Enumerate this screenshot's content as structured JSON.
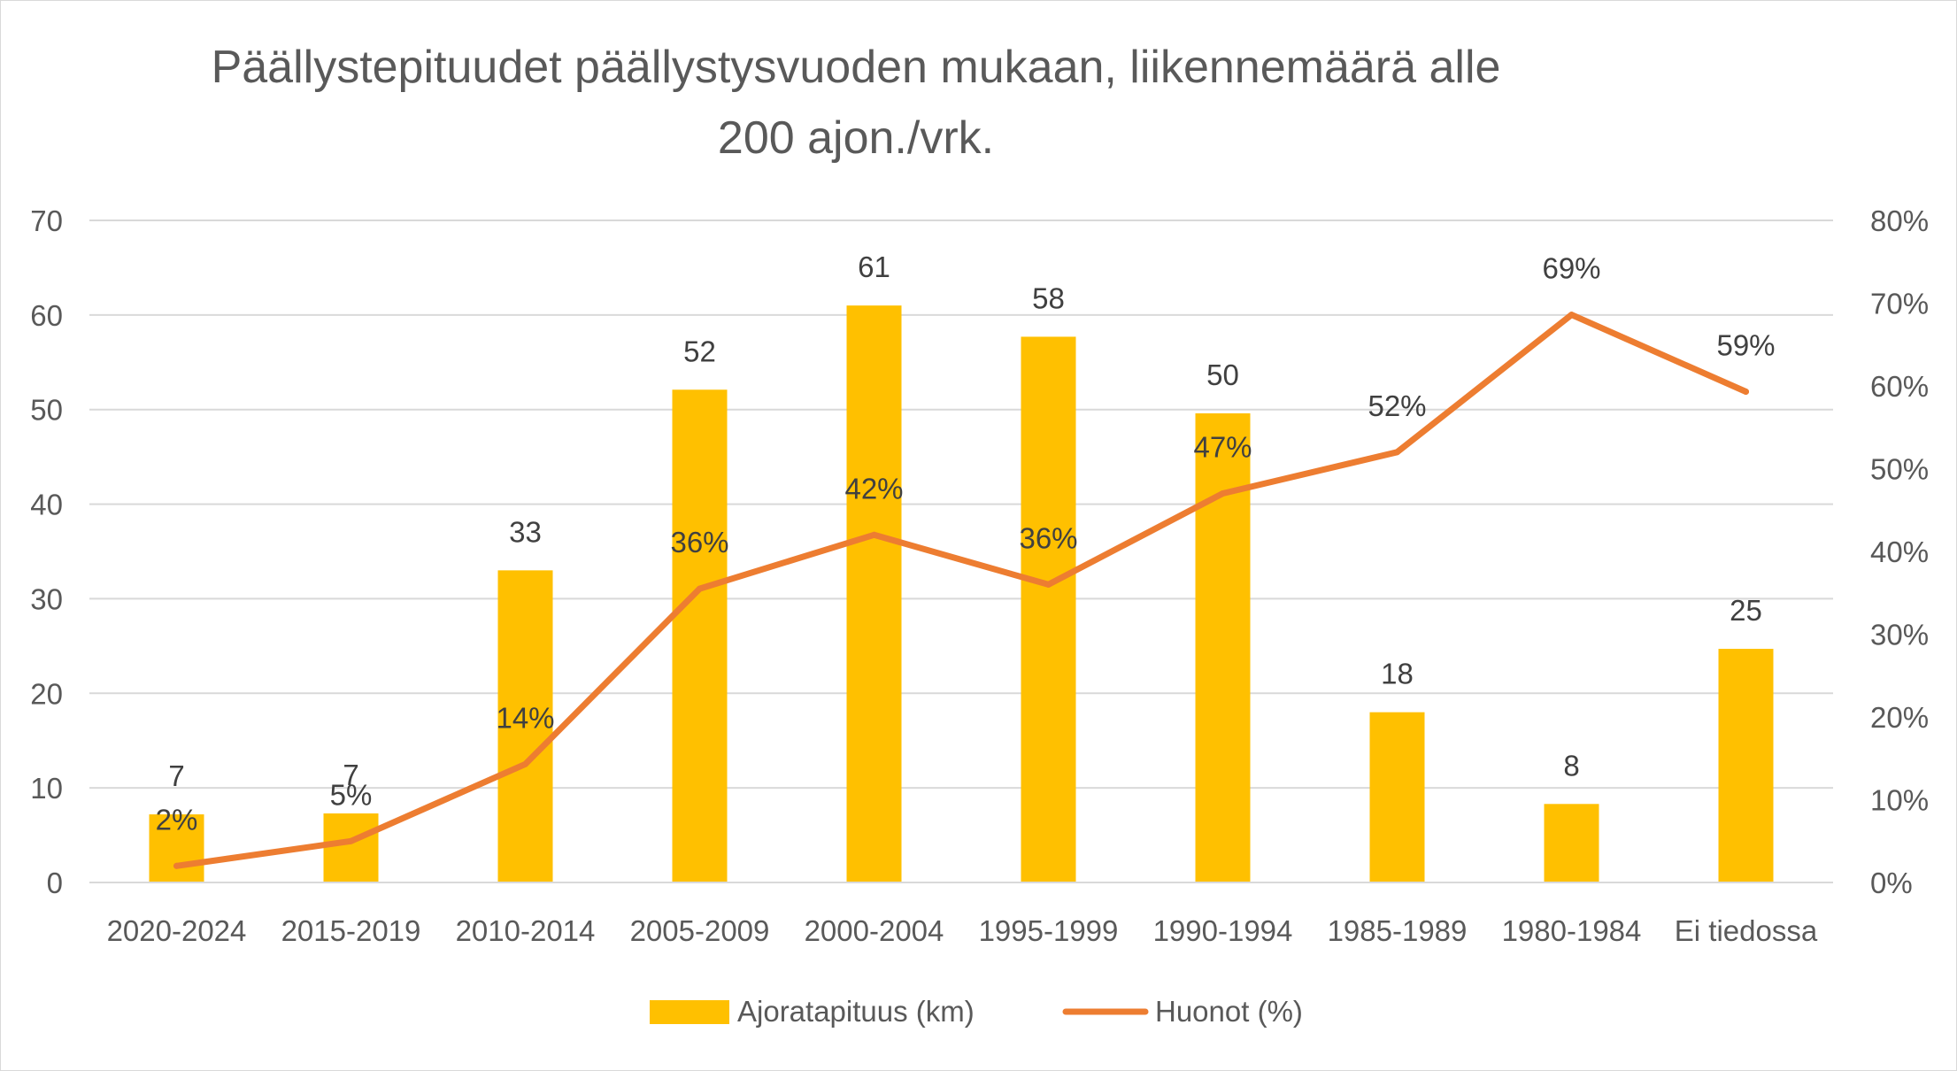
{
  "chart_data": {
    "type": "bar",
    "title_lines": [
      "Päällystepituudet päällystysvuoden mukaan, liikennemäärä alle",
      "200 ajon./vrk."
    ],
    "categories": [
      "2020-2024",
      "2015-2019",
      "2010-2014",
      "2005-2009",
      "2000-2004",
      "1995-1999",
      "1990-1994",
      "1985-1989",
      "1980-1984",
      "Ei tiedossa"
    ],
    "series": [
      {
        "name": "Ajoratapituus (km)",
        "type": "bar",
        "axis": "left",
        "color": "#FFC000",
        "values": [
          7.2,
          7.3,
          33,
          52.1,
          61,
          57.7,
          49.6,
          18,
          8.3,
          24.7
        ],
        "labels": [
          "7",
          "7",
          "33",
          "52",
          "61",
          "58",
          "50",
          "18",
          "8",
          "25"
        ]
      },
      {
        "name": "Huonot (%)",
        "type": "line",
        "axis": "right",
        "color": "#ED7D31",
        "values": [
          2,
          5,
          14.3,
          35.5,
          42,
          36,
          47,
          52,
          68.6,
          59.3
        ],
        "labels": [
          "2%",
          "5%",
          "14%",
          "36%",
          "42%",
          "36%",
          "47%",
          "52%",
          "69%",
          "59%"
        ]
      }
    ],
    "y_left": {
      "min": 0,
      "max": 70,
      "ticks": [
        "0",
        "10",
        "20",
        "30",
        "40",
        "50",
        "60",
        "70"
      ]
    },
    "y_right": {
      "min": 0,
      "max": 80,
      "ticks": [
        "0%",
        "10%",
        "20%",
        "30%",
        "40%",
        "50%",
        "60%",
        "70%",
        "80%"
      ]
    },
    "grid": true,
    "legend_position": "bottom"
  }
}
